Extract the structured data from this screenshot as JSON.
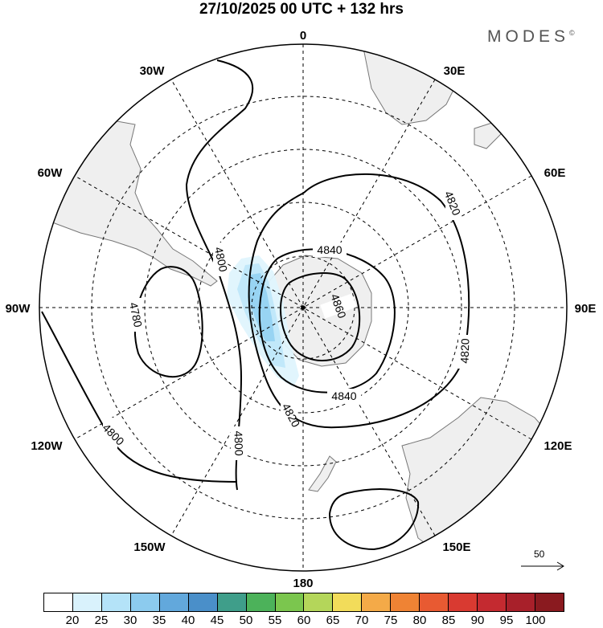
{
  "title": "27/10/2025  00 UTC  + 132 hrs",
  "brand": "MODES",
  "brand_mark": "©",
  "colors": {
    "land": "#efefef",
    "coast": "#777777",
    "grid": "#000000",
    "contour": "#000000",
    "wind_shading": [
      "#dff4fd",
      "#bfe7fa",
      "#96d3f2"
    ]
  },
  "longitude_labels": {
    "n0": "0",
    "n30e": "30E",
    "n60e": "60E",
    "n90e": "90E",
    "n120e": "120E",
    "n150e": "150E",
    "n180": "180",
    "n150w": "150W",
    "n120w": "120W",
    "n90w": "90W",
    "n60w": "60W",
    "n30w": "30W"
  },
  "contour_labels": {
    "c4840_top": "4840",
    "c4860": "4860",
    "c4840_bottom": "4840",
    "c4820_right": "4820",
    "c4820_east": "4820",
    "c4820_bottom": "4820",
    "c4800_west": "4800",
    "c4780": "4780",
    "c4800_sw": "4800",
    "c4800_south": "4800"
  },
  "vector_reference": {
    "value": "50"
  },
  "colorbar": {
    "labels": [
      "20",
      "25",
      "30",
      "35",
      "40",
      "45",
      "50",
      "55",
      "60",
      "65",
      "70",
      "75",
      "80",
      "85",
      "90",
      "95",
      "100"
    ],
    "colors": [
      "#ffffff",
      "#d9f2fc",
      "#b4e3f8",
      "#8ccbee",
      "#62a8dc",
      "#4a8fc9",
      "#3f9e8a",
      "#4cb25a",
      "#7bc64e",
      "#b4d65a",
      "#f2dc5a",
      "#f4aa48",
      "#ef8334",
      "#e85a32",
      "#d93a31",
      "#c42a30",
      "#a8202a",
      "#8a1a1f"
    ]
  }
}
